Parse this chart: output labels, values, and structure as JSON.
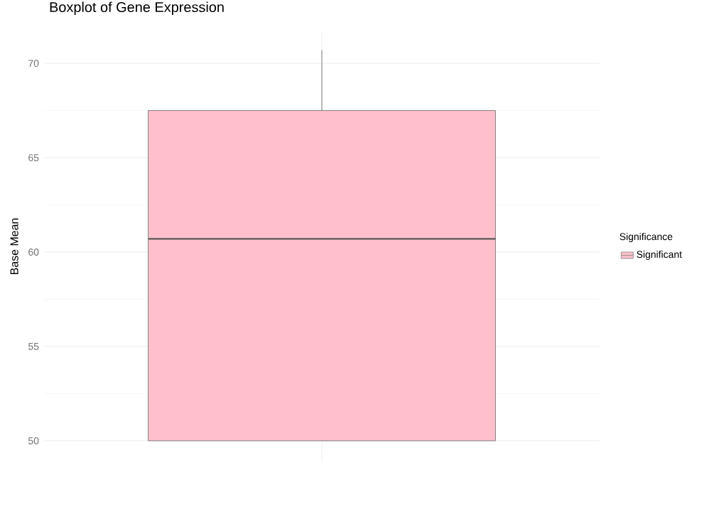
{
  "chart_data": {
    "type": "box",
    "title": "Boxplot of Gene Expression",
    "ylabel": "Base Mean",
    "legend_title": "Significance",
    "categories": [
      null
    ],
    "series": [
      {
        "name": "Significant",
        "color": "#ffc0cb",
        "boxes": [
          {
            "low": 50,
            "q1": 50,
            "median": 60.7,
            "q3": 67.5,
            "high": 70.7
          }
        ]
      }
    ],
    "ylim": [
      48.9,
      71.7
    ],
    "yticks": [
      50,
      55,
      60,
      65,
      70
    ],
    "grid": true,
    "legend": "right"
  }
}
